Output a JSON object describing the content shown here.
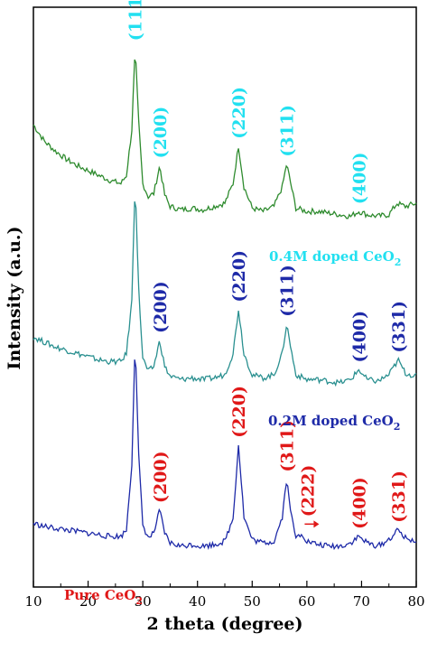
{
  "chart_data": {
    "type": "line",
    "title": "",
    "xlabel": "2 theta (degree)",
    "ylabel": "Intensity (a.u.)",
    "xlim": [
      10,
      80
    ],
    "xticks": [
      "10",
      "20",
      "30",
      "40",
      "50",
      "60",
      "70",
      "80"
    ],
    "grid": false,
    "legend": "inline labels",
    "series": [
      {
        "name_parts": {
          "base": "0.4M doped CeO",
          "sub": "2"
        },
        "color": "#2e8b2e",
        "label_color": "#22e0f0",
        "offset": 2.0,
        "points": [
          [
            10,
            0.58
          ],
          [
            12,
            0.48
          ],
          [
            14,
            0.42
          ],
          [
            16,
            0.37
          ],
          [
            18,
            0.33
          ],
          [
            20,
            0.3
          ],
          [
            22,
            0.27
          ],
          [
            24,
            0.24
          ],
          [
            26,
            0.22
          ],
          [
            27,
            0.27
          ],
          [
            28,
            0.55
          ],
          [
            28.6,
            1.05
          ],
          [
            29.2,
            0.62
          ],
          [
            30,
            0.22
          ],
          [
            31,
            0.14
          ],
          [
            32,
            0.16
          ],
          [
            33.1,
            0.33
          ],
          [
            34,
            0.15
          ],
          [
            35,
            0.08
          ],
          [
            37,
            0.06
          ],
          [
            39,
            0.07
          ],
          [
            41,
            0.06
          ],
          [
            43,
            0.08
          ],
          [
            45,
            0.1
          ],
          [
            46.5,
            0.22
          ],
          [
            47.5,
            0.45
          ],
          [
            48.5,
            0.2
          ],
          [
            50,
            0.07
          ],
          [
            52,
            0.05
          ],
          [
            54,
            0.08
          ],
          [
            55.5,
            0.2
          ],
          [
            56.3,
            0.34
          ],
          [
            57.3,
            0.18
          ],
          [
            58,
            0.07
          ],
          [
            60,
            0.05
          ],
          [
            62,
            0.05
          ],
          [
            64,
            0.04
          ],
          [
            66,
            0.03
          ],
          [
            68,
            0.02
          ],
          [
            69.5,
            0.05
          ],
          [
            71,
            0.03
          ],
          [
            73,
            0.02
          ],
          [
            75,
            0.03
          ],
          [
            76.5,
            0.1
          ],
          [
            78,
            0.08
          ],
          [
            80,
            0.1
          ]
        ],
        "peaks": [
          {
            "label": "(111)",
            "x": 28.6
          },
          {
            "label": "(200)",
            "x": 33.1
          },
          {
            "label": "(220)",
            "x": 47.5
          },
          {
            "label": "(311)",
            "x": 56.3
          },
          {
            "label": "(400)",
            "x": 69.5
          }
        ]
      },
      {
        "name_parts": {
          "base": "0.2M doped CeO",
          "sub": "2"
        },
        "color": "#2a9090",
        "label_color": "#1e2aa8",
        "offset": 1.0,
        "points": [
          [
            10,
            0.28
          ],
          [
            12,
            0.25
          ],
          [
            14,
            0.22
          ],
          [
            16,
            0.2
          ],
          [
            18,
            0.18
          ],
          [
            20,
            0.16
          ],
          [
            22,
            0.14
          ],
          [
            24,
            0.13
          ],
          [
            26,
            0.13
          ],
          [
            27,
            0.18
          ],
          [
            28,
            0.5
          ],
          [
            28.6,
            1.25
          ],
          [
            29.2,
            0.6
          ],
          [
            30,
            0.15
          ],
          [
            31,
            0.07
          ],
          [
            32,
            0.1
          ],
          [
            33.1,
            0.26
          ],
          [
            34,
            0.1
          ],
          [
            35,
            0.04
          ],
          [
            37,
            0.02
          ],
          [
            39,
            0.03
          ],
          [
            41,
            0.02
          ],
          [
            43,
            0.03
          ],
          [
            45,
            0.05
          ],
          [
            46.5,
            0.18
          ],
          [
            47.5,
            0.45
          ],
          [
            48.5,
            0.18
          ],
          [
            50,
            0.05
          ],
          [
            52,
            0.03
          ],
          [
            54,
            0.05
          ],
          [
            55.5,
            0.18
          ],
          [
            56.3,
            0.36
          ],
          [
            57.3,
            0.17
          ],
          [
            58,
            0.05
          ],
          [
            60,
            0.02
          ],
          [
            62,
            0.02
          ],
          [
            64,
            0.01
          ],
          [
            66,
            0.0
          ],
          [
            68,
            0.02
          ],
          [
            69.5,
            0.08
          ],
          [
            71,
            0.02
          ],
          [
            73,
            0.01
          ],
          [
            75,
            0.05
          ],
          [
            76.7,
            0.14
          ],
          [
            78,
            0.06
          ],
          [
            80,
            0.04
          ]
        ],
        "peaks": [
          {
            "label": "(200)",
            "x": 33.1
          },
          {
            "label": "(220)",
            "x": 47.5
          },
          {
            "label": "(311)",
            "x": 56.3
          },
          {
            "label": "(400)",
            "x": 69.5
          },
          {
            "label": "(331)",
            "x": 76.7
          }
        ]
      },
      {
        "name_parts": {
          "base": "Pure CeO",
          "sub": "2"
        },
        "color": "#1e2aa8",
        "label_color": "#e01818",
        "offset": 0.0,
        "points": [
          [
            10,
            0.14
          ],
          [
            12,
            0.12
          ],
          [
            14,
            0.11
          ],
          [
            16,
            0.1
          ],
          [
            18,
            0.09
          ],
          [
            20,
            0.08
          ],
          [
            22,
            0.07
          ],
          [
            24,
            0.06
          ],
          [
            26,
            0.06
          ],
          [
            27,
            0.1
          ],
          [
            28,
            0.5
          ],
          [
            28.6,
            1.28
          ],
          [
            29.2,
            0.58
          ],
          [
            30,
            0.13
          ],
          [
            31,
            0.05
          ],
          [
            32,
            0.08
          ],
          [
            33.1,
            0.22
          ],
          [
            34,
            0.08
          ],
          [
            35,
            0.02
          ],
          [
            37,
            0.0
          ],
          [
            39,
            0.01
          ],
          [
            41,
            0.0
          ],
          [
            43,
            0.01
          ],
          [
            45,
            0.03
          ],
          [
            46.5,
            0.17
          ],
          [
            47.5,
            0.62
          ],
          [
            48.5,
            0.18
          ],
          [
            50,
            0.04
          ],
          [
            52,
            0.02
          ],
          [
            54,
            0.03
          ],
          [
            55.5,
            0.18
          ],
          [
            56.3,
            0.41
          ],
          [
            57.3,
            0.16
          ],
          [
            58,
            0.05
          ],
          [
            59.1,
            0.08
          ],
          [
            60,
            0.03
          ],
          [
            62,
            0.01
          ],
          [
            64,
            0.0
          ],
          [
            66,
            0.0
          ],
          [
            68,
            0.02
          ],
          [
            69.5,
            0.06
          ],
          [
            71,
            0.02
          ],
          [
            73,
            0.0
          ],
          [
            75,
            0.04
          ],
          [
            76.7,
            0.1
          ],
          [
            78,
            0.05
          ],
          [
            80,
            0.03
          ]
        ],
        "peaks": [
          {
            "label": "(200)",
            "x": 33.1
          },
          {
            "label": "(220)",
            "x": 47.5
          },
          {
            "label": "(311)",
            "x": 56.3
          },
          {
            "label": "(222)",
            "x": 59.1,
            "arrow": true
          },
          {
            "label": "(400)",
            "x": 69.5
          },
          {
            "label": "(331)",
            "x": 76.7
          }
        ]
      }
    ]
  }
}
